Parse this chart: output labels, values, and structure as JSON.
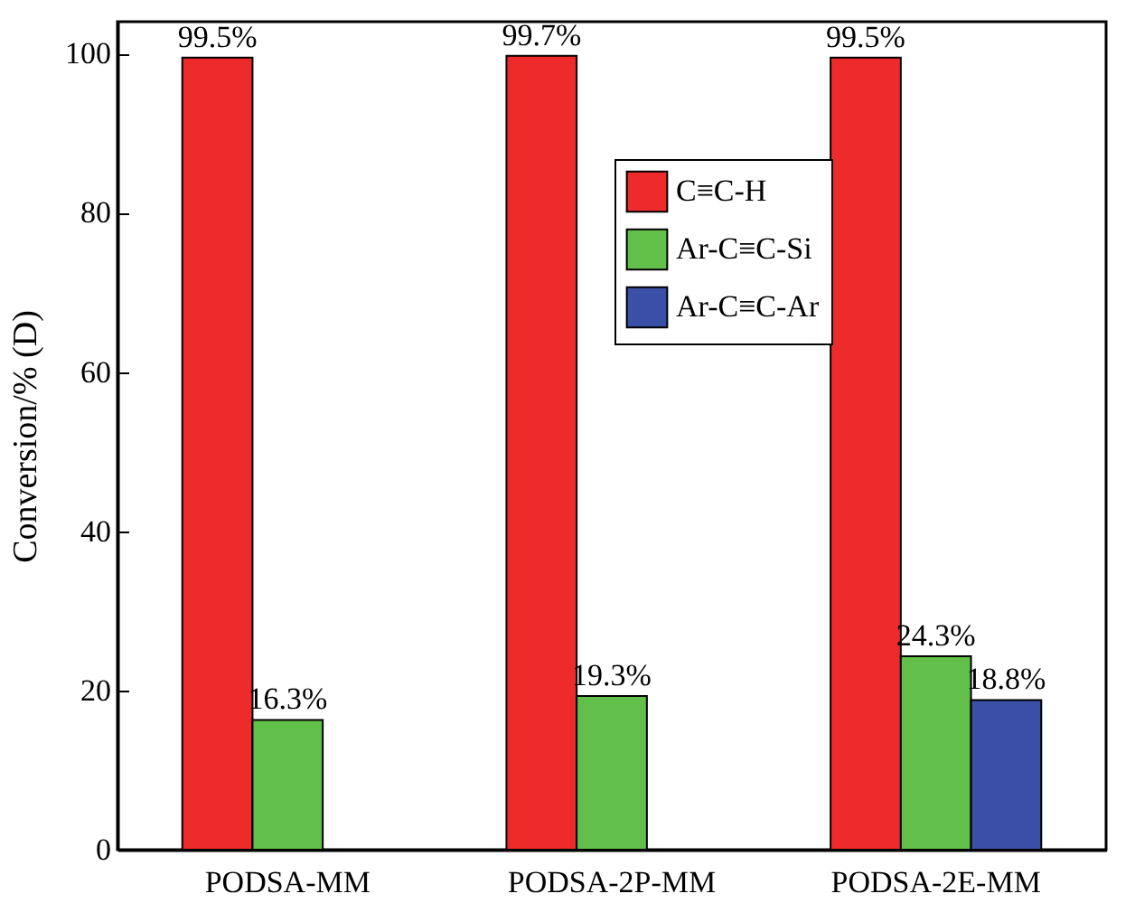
{
  "chart_data": {
    "type": "bar",
    "ylabel": "Conversion/% (D)",
    "categories": [
      "PODSA-MM",
      "PODSA-2P-MM",
      "PODSA-2E-MM"
    ],
    "series": [
      {
        "name": "C≡C-H",
        "color": "#ee2b2b",
        "values": [
          99.5,
          99.7,
          99.5
        ],
        "value_labels": [
          "99.5%",
          "99.7%",
          "99.5%"
        ]
      },
      {
        "name": "Ar-C≡C-Si",
        "color": "#62bf4a",
        "values": [
          16.3,
          19.3,
          24.3
        ],
        "value_labels": [
          "16.3%",
          "19.3%",
          "24.3%"
        ]
      },
      {
        "name": "Ar-C≡C-Ar",
        "color": "#3a4fa6",
        "values": [
          null,
          null,
          18.8
        ],
        "value_labels": [
          null,
          null,
          "18.8%"
        ]
      }
    ],
    "ylim": [
      0,
      104
    ],
    "yticks": [
      0,
      20,
      40,
      60,
      80,
      100
    ],
    "legend": "top right"
  }
}
